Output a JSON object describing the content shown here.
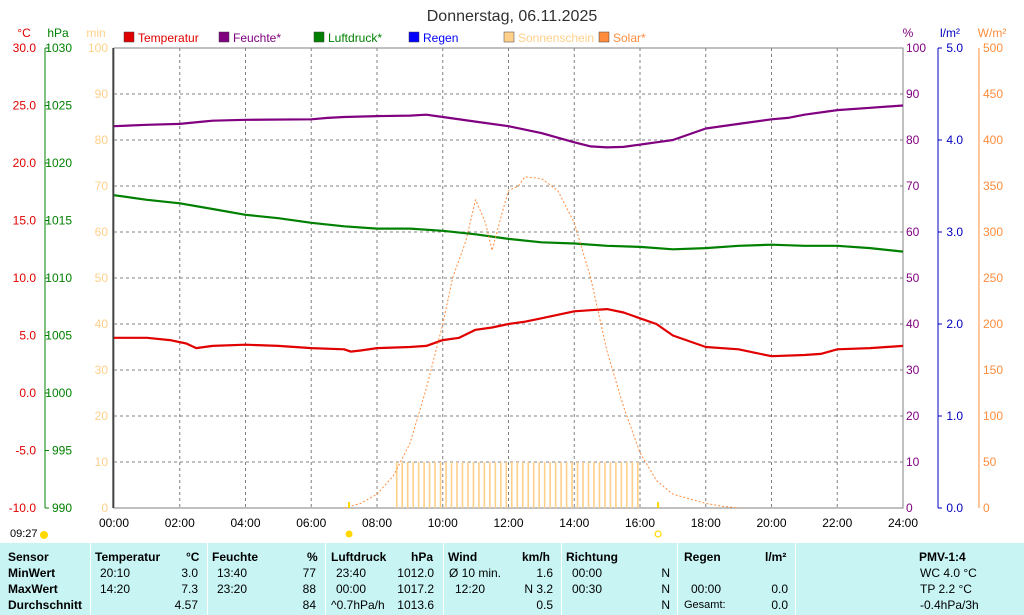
{
  "title": "Donnerstag, 06.11.2025",
  "time_label": "09:27",
  "colors": {
    "temperature": "#e00000",
    "humidity": "#800080",
    "pressure": "#008000",
    "rain": "#0000ff",
    "sunshine": "#ffd08a",
    "solar": "#ff8c3c",
    "axis_temp": "#e00000",
    "axis_pressure": "#008000",
    "axis_sun": "#ffd08a",
    "axis_hum": "#800080",
    "axis_rain": "#0000c0",
    "axis_solar": "#ff8c3c",
    "grid": "#808080",
    "stats_bg": "#c8f4f4"
  },
  "legend": [
    {
      "label": "Temperatur",
      "color": "#e00000"
    },
    {
      "label": "Feuchte*",
      "color": "#800080"
    },
    {
      "label": "Luftdruck*",
      "color": "#008000"
    },
    {
      "label": "Regen",
      "color": "#0000ff"
    },
    {
      "label": "Sonnenschein",
      "color": "#ffd08a"
    },
    {
      "label": "Solar*",
      "color": "#ff8c3c"
    }
  ],
  "chart_data": {
    "type": "line",
    "title": "Donnerstag, 06.11.2025",
    "x_ticks": [
      "00:00",
      "02:00",
      "04:00",
      "06:00",
      "08:00",
      "10:00",
      "12:00",
      "14:00",
      "16:00",
      "18:00",
      "20:00",
      "22:00",
      "24:00"
    ],
    "xlim": [
      0,
      24
    ],
    "grid": true,
    "axes": {
      "temp": {
        "unit": "°C",
        "ticks": [
          "-10.0",
          "-5.0",
          "0.0",
          "5.0",
          "10.0",
          "15.0",
          "20.0",
          "25.0",
          "30.0"
        ],
        "ylim": [
          -10,
          30
        ]
      },
      "pressure": {
        "unit": "hPa",
        "ticks": [
          "990",
          "995",
          "1000",
          "1005",
          "1010",
          "1015",
          "1020",
          "1025",
          "1030"
        ],
        "ylim": [
          990,
          1030
        ]
      },
      "sun": {
        "unit": "min",
        "ticks": [
          "0",
          "10",
          "20",
          "30",
          "40",
          "50",
          "60",
          "70",
          "80",
          "90",
          "100"
        ],
        "ylim": [
          0,
          100
        ]
      },
      "hum": {
        "unit": "%",
        "ticks": [
          "0",
          "10",
          "20",
          "30",
          "40",
          "50",
          "60",
          "70",
          "80",
          "90",
          "100"
        ],
        "ylim": [
          0,
          100
        ]
      },
      "rain": {
        "unit": "l/m²",
        "ticks": [
          "0.0",
          "1.0",
          "2.0",
          "3.0",
          "4.0",
          "5.0"
        ],
        "ylim": [
          0,
          5
        ]
      },
      "solar": {
        "unit": "W/m²",
        "ticks": [
          "0",
          "50",
          "100",
          "150",
          "200",
          "250",
          "300",
          "350",
          "400",
          "450",
          "500"
        ],
        "ylim": [
          0,
          500
        ]
      }
    },
    "series": [
      {
        "name": "Temperatur",
        "axis": "temp",
        "color": "#e00000",
        "x": [
          0,
          1,
          1.7,
          2.2,
          2.5,
          3,
          4,
          5,
          6,
          7,
          7.2,
          7.5,
          8,
          9,
          9.5,
          10,
          10.5,
          11,
          11.5,
          12,
          12.5,
          13,
          13.5,
          14,
          14.5,
          15,
          15.5,
          16,
          16.5,
          17,
          18,
          19,
          19.5,
          20,
          21,
          21.5,
          22,
          23,
          24
        ],
        "y": [
          4.8,
          4.8,
          4.6,
          4.3,
          3.9,
          4.1,
          4.2,
          4.1,
          3.9,
          3.8,
          3.6,
          3.7,
          3.9,
          4.0,
          4.1,
          4.6,
          4.8,
          5.5,
          5.7,
          6.0,
          6.2,
          6.5,
          6.8,
          7.1,
          7.2,
          7.3,
          7.0,
          6.5,
          6.0,
          5.0,
          4.0,
          3.8,
          3.5,
          3.2,
          3.3,
          3.4,
          3.8,
          3.9,
          4.1
        ]
      },
      {
        "name": "Feuchte*",
        "axis": "hum",
        "color": "#800080",
        "x": [
          0,
          1,
          2,
          2.7,
          3,
          4,
          6,
          6.5,
          7,
          8,
          9,
          9.5,
          10,
          11,
          12,
          13,
          13.5,
          14,
          14.5,
          15,
          15.5,
          16,
          16.5,
          17,
          18,
          19,
          20,
          20.5,
          21,
          22,
          23,
          24
        ],
        "y": [
          83,
          83.3,
          83.5,
          84,
          84.2,
          84.4,
          84.5,
          84.8,
          85,
          85.2,
          85.3,
          85.5,
          85,
          84,
          83,
          81.5,
          80.5,
          79.5,
          78.6,
          78.4,
          78.5,
          79,
          79.5,
          80,
          82.5,
          83.5,
          84.5,
          84.8,
          85.5,
          86.5,
          87,
          87.5
        ]
      },
      {
        "name": "Luftdruck*",
        "axis": "pressure",
        "color": "#008000",
        "x": [
          0,
          0.5,
          1,
          2,
          3,
          4,
          5,
          6,
          7,
          8,
          9,
          10,
          11,
          12,
          13,
          14,
          15,
          16,
          17,
          18,
          19,
          20,
          21,
          22,
          23,
          24
        ],
        "y": [
          1017.2,
          1017.0,
          1016.8,
          1016.5,
          1016.0,
          1015.5,
          1015.2,
          1014.8,
          1014.5,
          1014.3,
          1014.3,
          1014.1,
          1013.8,
          1013.4,
          1013.1,
          1013.0,
          1012.8,
          1012.7,
          1012.5,
          1012.6,
          1012.8,
          1012.9,
          1012.8,
          1012.8,
          1012.6,
          1012.3
        ]
      },
      {
        "name": "Solar*",
        "axis": "solar",
        "color": "#ff8c3c",
        "x": [
          7,
          7.5,
          8,
          8.5,
          9,
          9.5,
          10,
          10.3,
          10.7,
          11,
          11.3,
          11.5,
          11.8,
          12,
          12.3,
          12.5,
          13,
          13.5,
          14,
          14.5,
          15,
          15.5,
          16,
          16.5,
          17,
          18,
          18.5,
          19
        ],
        "y": [
          0,
          5,
          15,
          35,
          70,
          130,
          200,
          250,
          290,
          335,
          310,
          280,
          320,
          345,
          350,
          360,
          358,
          345,
          310,
          250,
          170,
          110,
          60,
          30,
          15,
          5,
          2,
          0
        ]
      },
      {
        "name": "Sonnenschein",
        "axis": "sun",
        "color": "#ffd08a",
        "x": [
          8.6,
          16.0
        ],
        "y": [
          10,
          10
        ]
      }
    ]
  },
  "stats": {
    "headers": {
      "sensor": "Sensor",
      "temperature": "Temperatur",
      "temperature_unit": "°C",
      "humidity": "Feuchte",
      "humidity_unit": "%",
      "pressure": "Luftdruck",
      "pressure_unit": "hPa",
      "wind": "Wind",
      "wind_unit": "km/h",
      "direction": "Richtung",
      "rain": "Regen",
      "rain_unit": "l/m²",
      "pmv": "PMV-1:4"
    },
    "rows": [
      {
        "label": "MinWert",
        "temp_time": "20:10",
        "temp_val": "3.0",
        "hum_time": "13:40",
        "hum_val": "77",
        "press_time": "23:40",
        "press_val": "1012.0",
        "wind_label": "Ø 10 min.",
        "wind_val": "1.6",
        "dir_time": "00:00",
        "dir_val": "N",
        "rain_time": "",
        "rain_val": "",
        "pmv": "WC 4.0 °C"
      },
      {
        "label": "MaxWert",
        "temp_time": "14:20",
        "temp_val": "7.3",
        "hum_time": "23:20",
        "hum_val": "88",
        "press_time": "00:00",
        "press_val": "1017.2",
        "wind_label": "12:20",
        "wind_val": "N 3.2",
        "dir_time": "00:30",
        "dir_val": "N",
        "rain_time": "00:00",
        "rain_val": "0.0",
        "pmv": "TP 2.2 °C"
      },
      {
        "label": "Durchschnitt",
        "temp_time": "",
        "temp_val": "4.57",
        "hum_time": "",
        "hum_val": "84",
        "press_time": "^0.7hPa/h",
        "press_val": "1013.6",
        "wind_label": "",
        "wind_val": "0.5",
        "dir_time": "",
        "dir_val": "N",
        "rain_time": "Gesamt:",
        "rain_val": "0.0",
        "pmv": "-0.4hPa/3h"
      }
    ]
  }
}
